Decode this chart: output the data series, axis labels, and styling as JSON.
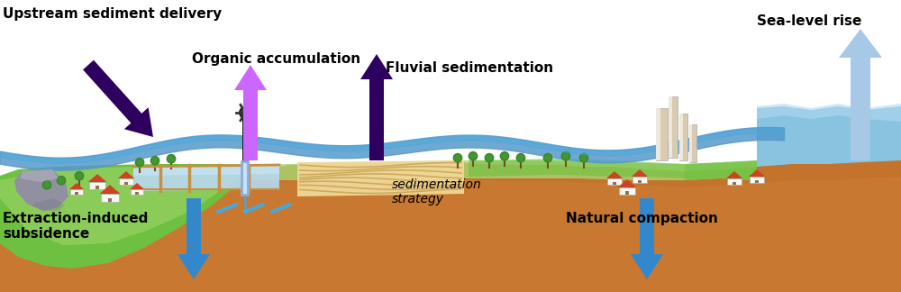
{
  "bg": "#ffffff",
  "hill_green_light": "#a8d870",
  "hill_green": "#6ec040",
  "hill_green_dark": "#50a030",
  "ground_brown": "#c87830",
  "ground_mid": "#b86820",
  "water_blue": "#5599cc",
  "water_bright": "#44aadd",
  "water_light": "#88ccee",
  "sea_color": "#88c4e0",
  "sea_light": "#b0d8f0",
  "field_blue": "#b8d8f0",
  "field_blue2": "#d0e8f8",
  "sediment_tan": "#f0d898",
  "sediment_line": "#c8a050",
  "rock_gray": "#9090a0",
  "rock_light": "#b8b8c8",
  "house_wall": "#f8f8f0",
  "house_roof": "#cc4422",
  "building_tan": "#d8cbb0",
  "building_light": "#ece8dc",
  "tree_green": "#3a8a2a",
  "tree_trunk": "#7b4a20",
  "pump_dark": "#1a1a10",
  "pump_pipe": "#8ab0d8",
  "arrow_dark_purple": "#2d0060",
  "arrow_light_purple": "#cc66ff",
  "arrow_light_blue": "#a8c8e8",
  "arrow_mid_blue": "#3388cc",
  "label_upstream": "Upstream sediment delivery",
  "label_organic": "Organic accumulation",
  "label_fluvial": "Fluvial sedimentation",
  "label_sealevel": "Sea-level rise",
  "label_extraction": "Extraction-induced\nsubsidence",
  "label_natural": "Natural compaction",
  "label_sedstrat": "sedimentation\nstrategy"
}
